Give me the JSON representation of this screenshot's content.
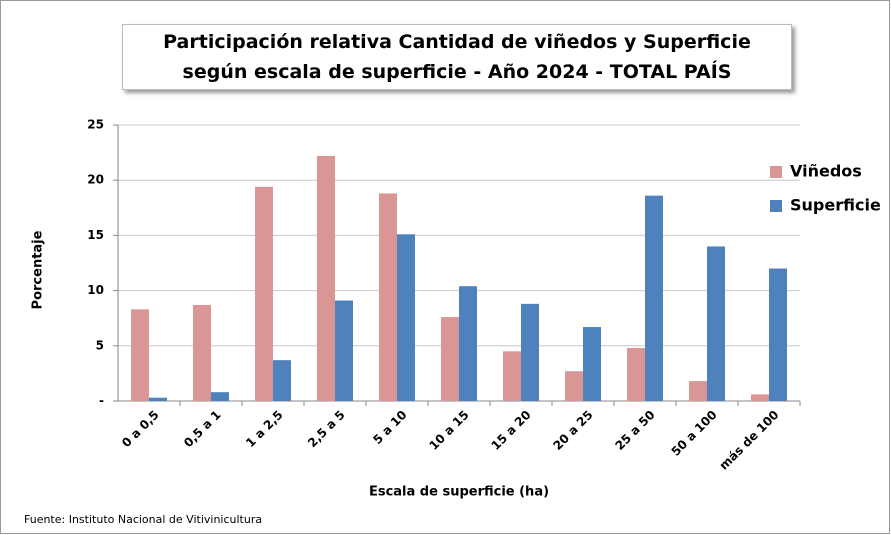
{
  "chart_data": {
    "type": "bar",
    "title": "Participación relativa Cantidad de viñedos y Superficie según escala de superficie - Año 2024 - TOTAL PAÍS",
    "x_label": "Escala de superficie (ha)",
    "y_label": "Porcentaje",
    "source": "Fuente: Instituto Nacional de Vitivinicultura",
    "categories": [
      "0 a 0,5",
      "0,5 a 1",
      "1 a 2,5",
      "2,5 a 5",
      "5 a 10",
      "10 a 15",
      "15 a 20",
      "20 a 25",
      "25 a 50",
      "50 a 100",
      "más de 100"
    ],
    "series": [
      {
        "name": "Viñedos",
        "color": "#d99694",
        "values": [
          8.3,
          8.7,
          19.4,
          22.2,
          18.8,
          7.6,
          4.5,
          2.7,
          4.8,
          1.8,
          0.6
        ]
      },
      {
        "name": "Superficie",
        "color": "#4f81bd",
        "values": [
          0.3,
          0.8,
          3.7,
          9.1,
          15.1,
          10.4,
          8.8,
          6.7,
          18.6,
          14.0,
          12.0
        ]
      }
    ],
    "ylim": [
      0,
      25
    ],
    "yticks": [
      {
        "value": 0,
        "label": "-"
      },
      5,
      10,
      15,
      20,
      25
    ],
    "grid": true,
    "legend": "right"
  }
}
